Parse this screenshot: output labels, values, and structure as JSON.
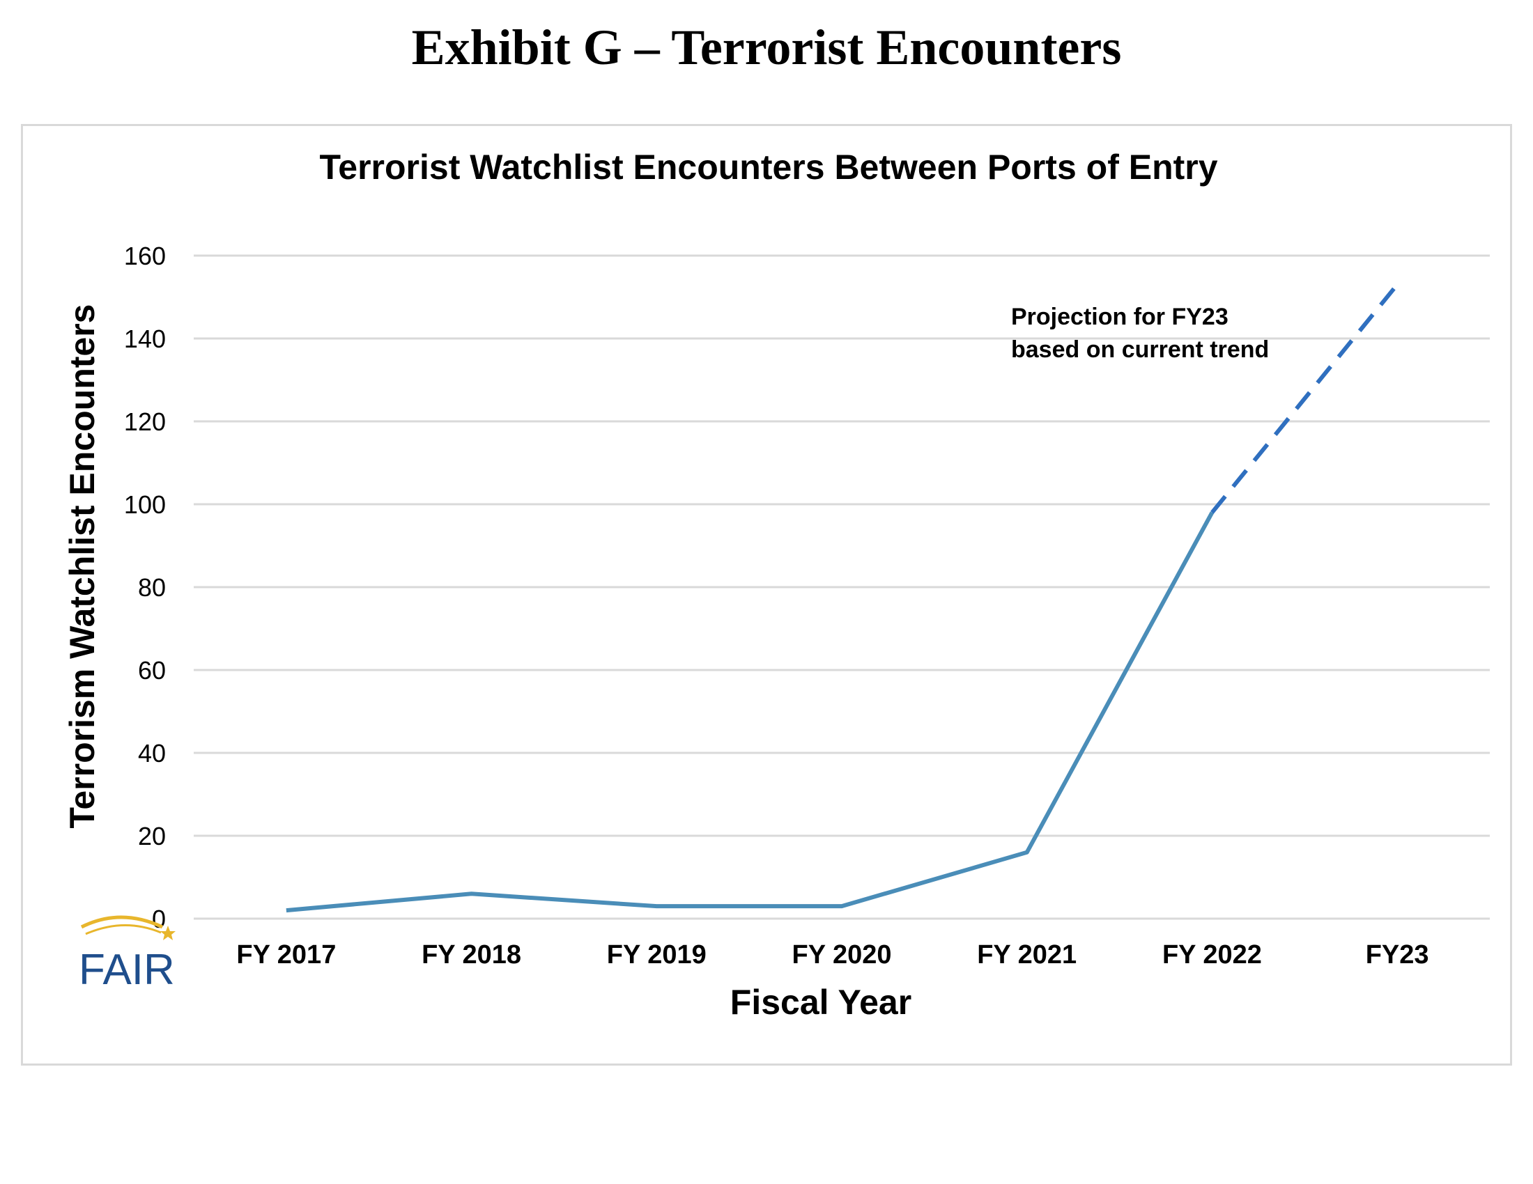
{
  "exhibit_title": "Exhibit G – Terrorist Encounters",
  "logo": {
    "text": "FAIR",
    "color": "#1f4e8c",
    "accent": "#e8b62c"
  },
  "colors": {
    "line": "#4a8db8",
    "projection": "#2f6fbf",
    "grid": "#d9d9d9",
    "frame": "#d9d9d9"
  },
  "chart_data": {
    "type": "line",
    "title": "Terrorist Watchlist Encounters Between Ports of Entry",
    "xlabel": "Fiscal Year",
    "ylabel": "Terrorism Watchlist Encounters",
    "categories": [
      "FY 2017",
      "FY 2018",
      "FY 2019",
      "FY 2020",
      "FY 2021",
      "FY 2022",
      "FY23"
    ],
    "ylim": [
      0,
      160
    ],
    "yticks": [
      0,
      20,
      40,
      60,
      80,
      100,
      120,
      140,
      160
    ],
    "grid": true,
    "series": [
      {
        "values": [
          2,
          6,
          3,
          3,
          16,
          98,
          null
        ],
        "style": "solid"
      },
      {
        "values": [
          null,
          null,
          null,
          null,
          null,
          98,
          153
        ],
        "style": "dashed"
      }
    ],
    "annotations": [
      {
        "text": "Projection for FY23",
        "line": 1
      },
      {
        "text": "based on current trend",
        "line": 2
      }
    ]
  }
}
